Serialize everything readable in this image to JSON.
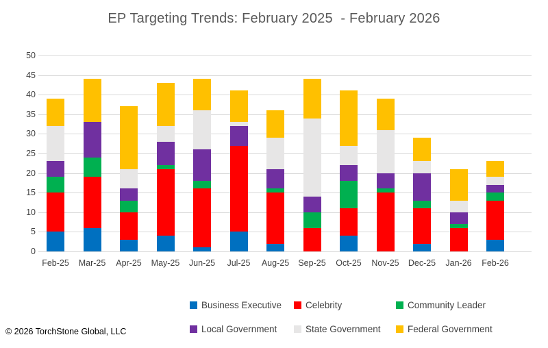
{
  "title": "EP Targeting Trends: February 2025  - February 2026",
  "footer": "© 2026 TorchStone Global, LLC",
  "colors": {
    "business_executive": "#0070C0",
    "celebrity": "#FF0000",
    "community_leader": "#00B050",
    "local_government": "#7030A0",
    "state_government": "#E7E6E6",
    "federal_government": "#FFC000",
    "gridline": "#D9D9D9",
    "axis_text": "#404040",
    "title_text": "#595959"
  },
  "chart_data": {
    "type": "bar",
    "stacked": true,
    "title": "EP Targeting Trends: February 2025  - February 2026",
    "categories": [
      "Feb-25",
      "Mar-25",
      "Apr-25",
      "May-25",
      "Jun-25",
      "Jul-25",
      "Aug-25",
      "Sep-25",
      "Oct-25",
      "Nov-25",
      "Dec-25",
      "Jan-26",
      "Feb-26"
    ],
    "series": [
      {
        "name": "Business Executive",
        "color": "#0070C0",
        "values": [
          5,
          6,
          3,
          4,
          1,
          5,
          2,
          0,
          4,
          0,
          2,
          0,
          3
        ]
      },
      {
        "name": "Celebrity",
        "color": "#FF0000",
        "values": [
          10,
          13,
          7,
          17,
          15,
          22,
          13,
          6,
          7,
          15,
          9,
          6,
          10
        ]
      },
      {
        "name": "Community Leader",
        "color": "#00B050",
        "values": [
          4,
          5,
          3,
          1,
          2,
          0,
          1,
          4,
          7,
          1,
          2,
          1,
          2
        ]
      },
      {
        "name": "Local Government",
        "color": "#7030A0",
        "values": [
          4,
          9,
          3,
          6,
          8,
          5,
          5,
          4,
          4,
          4,
          7,
          3,
          2
        ]
      },
      {
        "name": "State Government",
        "color": "#E7E6E6",
        "values": [
          9,
          0,
          5,
          4,
          10,
          1,
          8,
          20,
          5,
          11,
          3,
          3,
          2
        ]
      },
      {
        "name": "Federal Government",
        "color": "#FFC000",
        "values": [
          7,
          11,
          16,
          11,
          8,
          8,
          7,
          10,
          14,
          8,
          6,
          8,
          4
        ]
      }
    ],
    "totals": [
      39,
      44,
      37,
      43,
      44,
      41,
      36,
      44,
      41,
      39,
      29,
      21,
      23
    ],
    "ylim": [
      0,
      50
    ],
    "y_ticks": [
      0,
      5,
      10,
      15,
      20,
      25,
      30,
      35,
      40,
      45,
      50
    ],
    "xlabel": "",
    "ylabel": "",
    "grid": true,
    "legend_position": "bottom"
  }
}
